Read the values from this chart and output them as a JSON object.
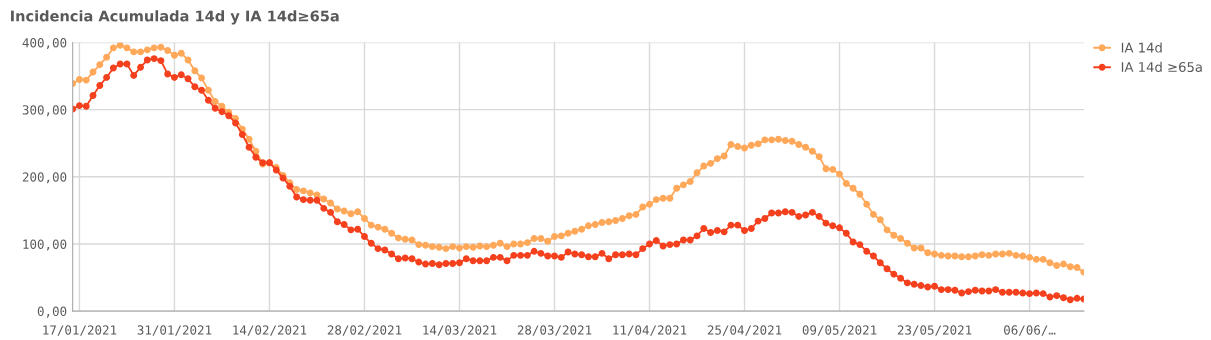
{
  "chart_data": {
    "type": "line",
    "title": "Incidencia Acumulada 14d y IA 14d≥65a",
    "x": [
      "2021-01-16",
      "2021-01-17",
      "2021-01-18",
      "2021-01-19",
      "2021-01-20",
      "2021-01-21",
      "2021-01-22",
      "2021-01-23",
      "2021-01-24",
      "2021-01-25",
      "2021-01-26",
      "2021-01-27",
      "2021-01-28",
      "2021-01-29",
      "2021-01-30",
      "2021-01-31",
      "2021-02-01",
      "2021-02-02",
      "2021-02-03",
      "2021-02-04",
      "2021-02-05",
      "2021-02-06",
      "2021-02-07",
      "2021-02-08",
      "2021-02-09",
      "2021-02-10",
      "2021-02-11",
      "2021-02-12",
      "2021-02-13",
      "2021-02-14",
      "2021-02-15",
      "2021-02-16",
      "2021-02-17",
      "2021-02-18",
      "2021-02-19",
      "2021-02-20",
      "2021-02-21",
      "2021-02-22",
      "2021-02-23",
      "2021-02-24",
      "2021-02-25",
      "2021-02-26",
      "2021-02-27",
      "2021-02-28",
      "2021-03-01",
      "2021-03-02",
      "2021-03-03",
      "2021-03-04",
      "2021-03-05",
      "2021-03-06",
      "2021-03-07",
      "2021-03-08",
      "2021-03-09",
      "2021-03-10",
      "2021-03-11",
      "2021-03-12",
      "2021-03-13",
      "2021-03-14",
      "2021-03-15",
      "2021-03-16",
      "2021-03-17",
      "2021-03-18",
      "2021-03-19",
      "2021-03-20",
      "2021-03-21",
      "2021-03-22",
      "2021-03-23",
      "2021-03-24",
      "2021-03-25",
      "2021-03-26",
      "2021-03-27",
      "2021-03-28",
      "2021-03-29",
      "2021-03-30",
      "2021-03-31",
      "2021-04-01",
      "2021-04-02",
      "2021-04-03",
      "2021-04-04",
      "2021-04-05",
      "2021-04-06",
      "2021-04-07",
      "2021-04-08",
      "2021-04-09",
      "2021-04-10",
      "2021-04-11",
      "2021-04-12",
      "2021-04-13",
      "2021-04-14",
      "2021-04-15",
      "2021-04-16",
      "2021-04-17",
      "2021-04-18",
      "2021-04-19",
      "2021-04-20",
      "2021-04-21",
      "2021-04-22",
      "2021-04-23",
      "2021-04-24",
      "2021-04-25",
      "2021-04-26",
      "2021-04-27",
      "2021-04-28",
      "2021-04-29",
      "2021-04-30",
      "2021-05-01",
      "2021-05-02",
      "2021-05-03",
      "2021-05-04",
      "2021-05-05",
      "2021-05-06",
      "2021-05-07",
      "2021-05-08",
      "2021-05-09",
      "2021-05-10",
      "2021-05-11",
      "2021-05-12",
      "2021-05-13",
      "2021-05-14",
      "2021-05-15",
      "2021-05-16",
      "2021-05-17",
      "2021-05-18",
      "2021-05-19",
      "2021-05-20",
      "2021-05-21",
      "2021-05-22",
      "2021-05-23",
      "2021-05-24",
      "2021-05-25",
      "2021-05-26",
      "2021-05-27",
      "2021-05-28",
      "2021-05-29",
      "2021-05-30",
      "2021-05-31",
      "2021-06-01",
      "2021-06-02",
      "2021-06-03",
      "2021-06-04",
      "2021-06-05",
      "2021-06-06",
      "2021-06-07",
      "2021-06-08",
      "2021-06-09",
      "2021-06-10",
      "2021-06-11",
      "2021-06-12",
      "2021-06-13",
      "2021-06-14"
    ],
    "series": [
      {
        "name": "IA 14d",
        "color": "#ffa85a",
        "values": [
          339,
          345,
          344,
          356,
          367,
          378,
          392,
          396,
          392,
          386,
          386,
          389,
          392,
          393,
          388,
          381,
          384,
          374,
          358,
          347,
          329,
          312,
          305,
          296,
          287,
          271,
          256,
          238,
          219,
          221,
          214,
          202,
          191,
          181,
          179,
          176,
          173,
          167,
          161,
          152,
          149,
          145,
          148,
          138,
          128,
          125,
          122,
          116,
          109,
          107,
          106,
          99,
          98,
          96,
          95,
          93,
          96,
          94,
          96,
          95,
          97,
          96,
          98,
          101,
          96,
          100,
          100,
          102,
          108,
          108,
          104,
          111,
          112,
          116,
          119,
          122,
          127,
          129,
          132,
          133,
          135,
          138,
          142,
          144,
          155,
          159,
          166,
          168,
          168,
          183,
          188,
          193,
          206,
          216,
          220,
          227,
          231,
          248,
          245,
          243,
          247,
          249,
          255,
          255,
          256,
          254,
          253,
          248,
          244,
          238,
          230,
          212,
          211,
          204,
          190,
          183,
          174,
          159,
          144,
          136,
          121,
          113,
          108,
          101,
          94,
          94,
          87,
          85,
          83,
          82,
          82,
          81,
          81,
          82,
          84,
          83,
          85,
          85,
          86,
          83,
          82,
          80,
          77,
          77,
          72,
          68,
          70,
          66,
          65,
          58
        ]
      },
      {
        "name": "IA 14d ≥65a",
        "color": "#f5401e",
        "values": [
          301,
          306,
          305,
          321,
          336,
          348,
          362,
          368,
          368,
          351,
          363,
          374,
          376,
          373,
          353,
          348,
          352,
          346,
          334,
          329,
          314,
          302,
          297,
          291,
          280,
          263,
          244,
          229,
          221,
          221,
          210,
          198,
          186,
          170,
          166,
          165,
          165,
          153,
          147,
          133,
          129,
          121,
          122,
          111,
          101,
          93,
          91,
          85,
          78,
          79,
          78,
          73,
          70,
          71,
          69,
          71,
          71,
          72,
          78,
          75,
          75,
          75,
          80,
          80,
          75,
          83,
          83,
          83,
          89,
          86,
          82,
          82,
          80,
          88,
          85,
          84,
          81,
          81,
          86,
          78,
          84,
          84,
          85,
          84,
          93,
          100,
          105,
          97,
          99,
          100,
          106,
          106,
          112,
          123,
          117,
          120,
          118,
          128,
          128,
          120,
          123,
          134,
          138,
          146,
          146,
          148,
          147,
          141,
          143,
          147,
          141,
          131,
          127,
          124,
          116,
          103,
          99,
          89,
          82,
          72,
          63,
          55,
          49,
          42,
          40,
          38,
          36,
          37,
          32,
          32,
          31,
          27,
          29,
          31,
          30,
          30,
          32,
          28,
          28,
          28,
          27,
          26,
          27,
          26,
          21,
          23,
          20,
          17,
          19,
          18
        ]
      }
    ],
    "xlim": [
      "2021-01-16",
      "2021-06-14"
    ],
    "xticks": [
      {
        "value": "2021-01-17",
        "label": "17/01/2021"
      },
      {
        "value": "2021-01-31",
        "label": "31/01/2021"
      },
      {
        "value": "2021-02-14",
        "label": "14/02/2021"
      },
      {
        "value": "2021-02-28",
        "label": "28/02/2021"
      },
      {
        "value": "2021-03-14",
        "label": "14/03/2021"
      },
      {
        "value": "2021-03-28",
        "label": "28/03/2021"
      },
      {
        "value": "2021-04-11",
        "label": "11/04/2021"
      },
      {
        "value": "2021-04-25",
        "label": "25/04/2021"
      },
      {
        "value": "2021-05-09",
        "label": "09/05/2021"
      },
      {
        "value": "2021-05-23",
        "label": "23/05/2021"
      },
      {
        "value": "2021-06-06",
        "label": "06/06/…"
      }
    ],
    "ylim": [
      0,
      400
    ],
    "yticks": [
      {
        "value": 0,
        "label": "0,00"
      },
      {
        "value": 100,
        "label": "100,00"
      },
      {
        "value": 200,
        "label": "200,00"
      },
      {
        "value": 300,
        "label": "300,00"
      },
      {
        "value": 400,
        "label": "400,00"
      }
    ],
    "grid": true,
    "legend": "top right",
    "marker": "circle",
    "line_style": "solid"
  }
}
